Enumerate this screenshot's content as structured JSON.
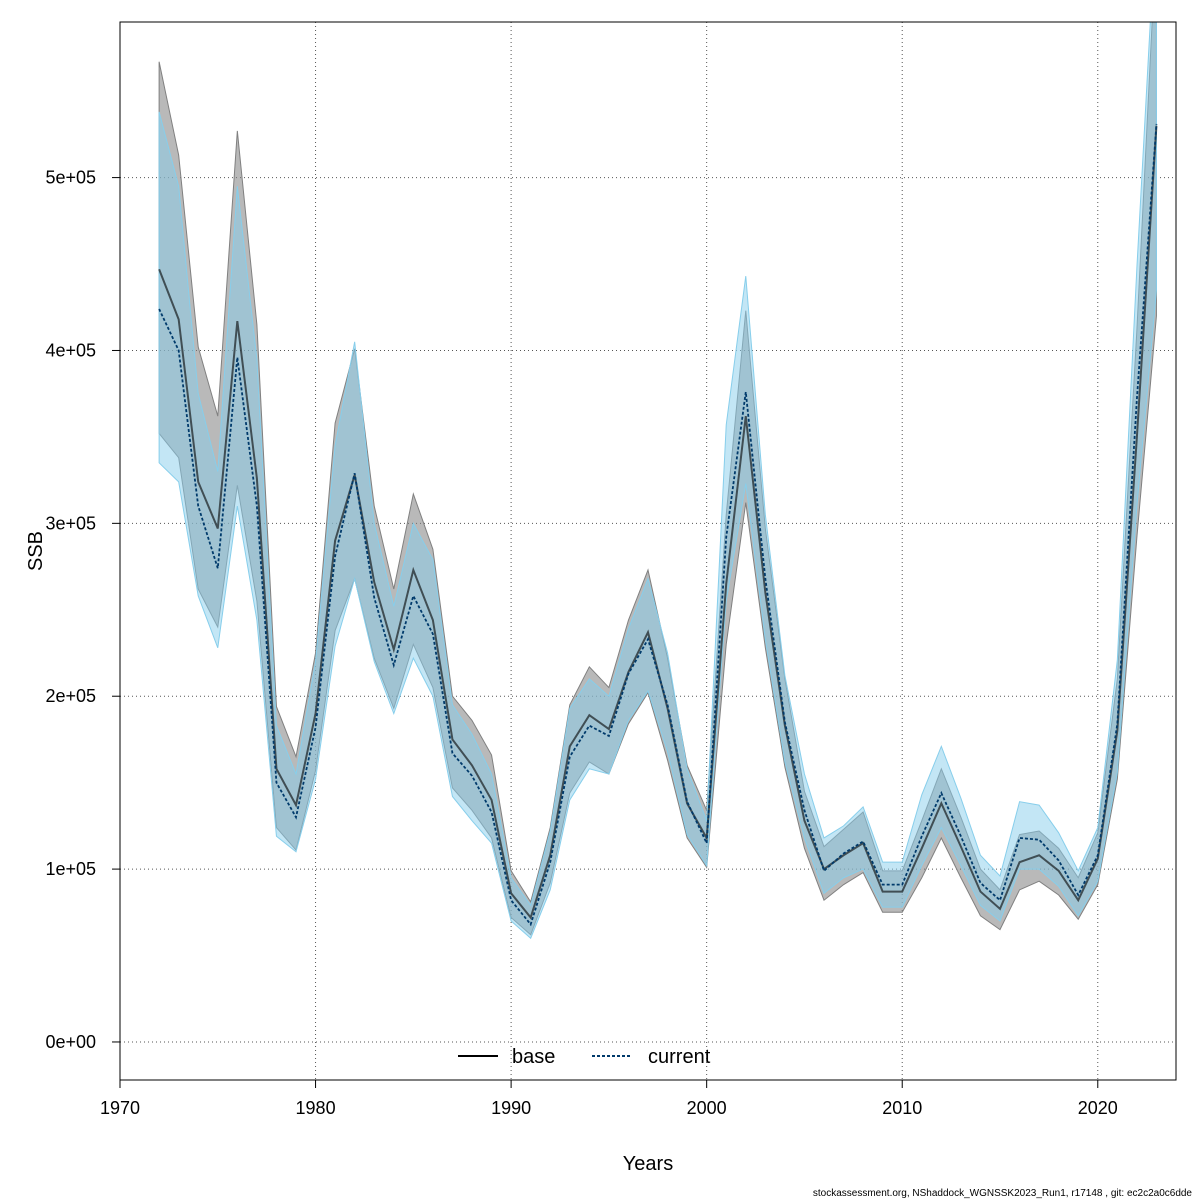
{
  "chart_data": {
    "type": "line",
    "xlabel": "Years",
    "ylabel": "SSB",
    "xlim": [
      1970,
      2024
    ],
    "ylim": [
      -22000,
      590000
    ],
    "x_ticks": [
      1970,
      1980,
      1990,
      2000,
      2010,
      2020
    ],
    "x_tick_labels": [
      "1970",
      "1980",
      "1990",
      "2000",
      "2010",
      "2020"
    ],
    "y_ticks": [
      0,
      100000,
      200000,
      300000,
      400000,
      500000
    ],
    "y_tick_labels": [
      "0e+00",
      "1e+05",
      "2e+05",
      "3e+05",
      "4e+05",
      "5e+05"
    ],
    "grid": true,
    "legend_position": "bottom-center",
    "footer": "stockassessment.org, NShaddock_WGNSSK2023_Run1, r17148 , git: ec2c2a0c6dde",
    "years": [
      1972,
      1973,
      1974,
      1975,
      1976,
      1977,
      1978,
      1979,
      1980,
      1981,
      1982,
      1983,
      1984,
      1985,
      1986,
      1987,
      1988,
      1989,
      1990,
      1991,
      1992,
      1993,
      1994,
      1995,
      1996,
      1997,
      1998,
      1999,
      2000,
      2001,
      2002,
      2003,
      2004,
      2005,
      2006,
      2007,
      2008,
      2009,
      2010,
      2011,
      2012,
      2013,
      2014,
      2015,
      2016,
      2017,
      2018,
      2019,
      2020,
      2021,
      2022,
      2023
    ],
    "series": [
      {
        "name": "base",
        "color": "#000000",
        "band_color": "#808080",
        "line_style": "solid",
        "values": [
          447000,
          418000,
          324000,
          297000,
          417000,
          326000,
          158000,
          137000,
          190000,
          290000,
          328000,
          266000,
          227000,
          273000,
          244000,
          175000,
          160000,
          140000,
          86000,
          72000,
          108000,
          171000,
          189000,
          181000,
          214000,
          237000,
          193000,
          138000,
          118000,
          265000,
          362000,
          260000,
          183000,
          128000,
          100000,
          108000,
          115000,
          87000,
          87000,
          112000,
          138000,
          113000,
          87000,
          77000,
          104000,
          108000,
          99000,
          82000,
          106000,
          180000,
          350000,
          530000
        ],
        "lower": [
          352000,
          338000,
          262000,
          240000,
          322000,
          255000,
          124000,
          111000,
          157000,
          238000,
          268000,
          222000,
          193000,
          230000,
          205000,
          147000,
          134000,
          118000,
          72000,
          62000,
          92000,
          144000,
          162000,
          155000,
          184000,
          202000,
          163000,
          118000,
          101000,
          230000,
          312000,
          228000,
          159000,
          112000,
          82000,
          91000,
          98000,
          75000,
          75000,
          95000,
          118000,
          95000,
          73000,
          65000,
          88000,
          93000,
          85000,
          71000,
          91000,
          152000,
          292000,
          420000
        ],
        "upper": [
          567000,
          513000,
          402000,
          362000,
          527000,
          415000,
          194000,
          165000,
          225000,
          358000,
          401000,
          310000,
          262000,
          317000,
          285000,
          200000,
          186000,
          166000,
          99000,
          81000,
          124000,
          195000,
          217000,
          205000,
          244000,
          273000,
          222000,
          160000,
          134000,
          305000,
          423000,
          297000,
          210000,
          145000,
          113000,
          123000,
          133000,
          99000,
          99000,
          128000,
          158000,
          130000,
          100000,
          88000,
          120000,
          122000,
          112000,
          95000,
          121000,
          210000,
          412000,
          640000
        ]
      },
      {
        "name": "current",
        "color": "#003a6b",
        "band_color": "#87ceeb",
        "line_style": "dotted",
        "values": [
          424000,
          400000,
          310000,
          274000,
          396000,
          310000,
          150000,
          130000,
          182000,
          281000,
          329000,
          257000,
          218000,
          258000,
          236000,
          167000,
          154000,
          133000,
          82000,
          68000,
          104000,
          165000,
          183000,
          177000,
          213000,
          233000,
          195000,
          139000,
          115000,
          292000,
          376000,
          268000,
          185000,
          134000,
          99000,
          109000,
          116000,
          91000,
          91000,
          119000,
          144000,
          119000,
          92000,
          82000,
          118000,
          117000,
          105000,
          85000,
          108000,
          184000,
          372000,
          531000
        ],
        "lower": [
          335000,
          324000,
          258000,
          228000,
          310000,
          244000,
          119000,
          110000,
          152000,
          229000,
          268000,
          220000,
          190000,
          222000,
          200000,
          142000,
          128000,
          115000,
          70000,
          60000,
          88000,
          140000,
          158000,
          155000,
          186000,
          203000,
          168000,
          120000,
          102000,
          255000,
          323000,
          233000,
          162000,
          118000,
          86000,
          95000,
          100000,
          78000,
          78000,
          102000,
          124000,
          102000,
          79000,
          70000,
          100000,
          100000,
          90000,
          73000,
          93000,
          156000,
          310000,
          435000
        ],
        "upper": [
          538000,
          495000,
          375000,
          330000,
          495000,
          395000,
          183000,
          155000,
          220000,
          345000,
          405000,
          300000,
          252000,
          300000,
          279000,
          195000,
          178000,
          155000,
          95000,
          79000,
          122000,
          193000,
          210000,
          200000,
          239000,
          268000,
          225000,
          158000,
          128000,
          357000,
          443000,
          305000,
          212000,
          155000,
          118000,
          125000,
          136000,
          104000,
          104000,
          143000,
          171000,
          141000,
          108000,
          96000,
          139000,
          137000,
          121000,
          99000,
          124000,
          221000,
          448000,
          655000
        ]
      }
    ]
  }
}
